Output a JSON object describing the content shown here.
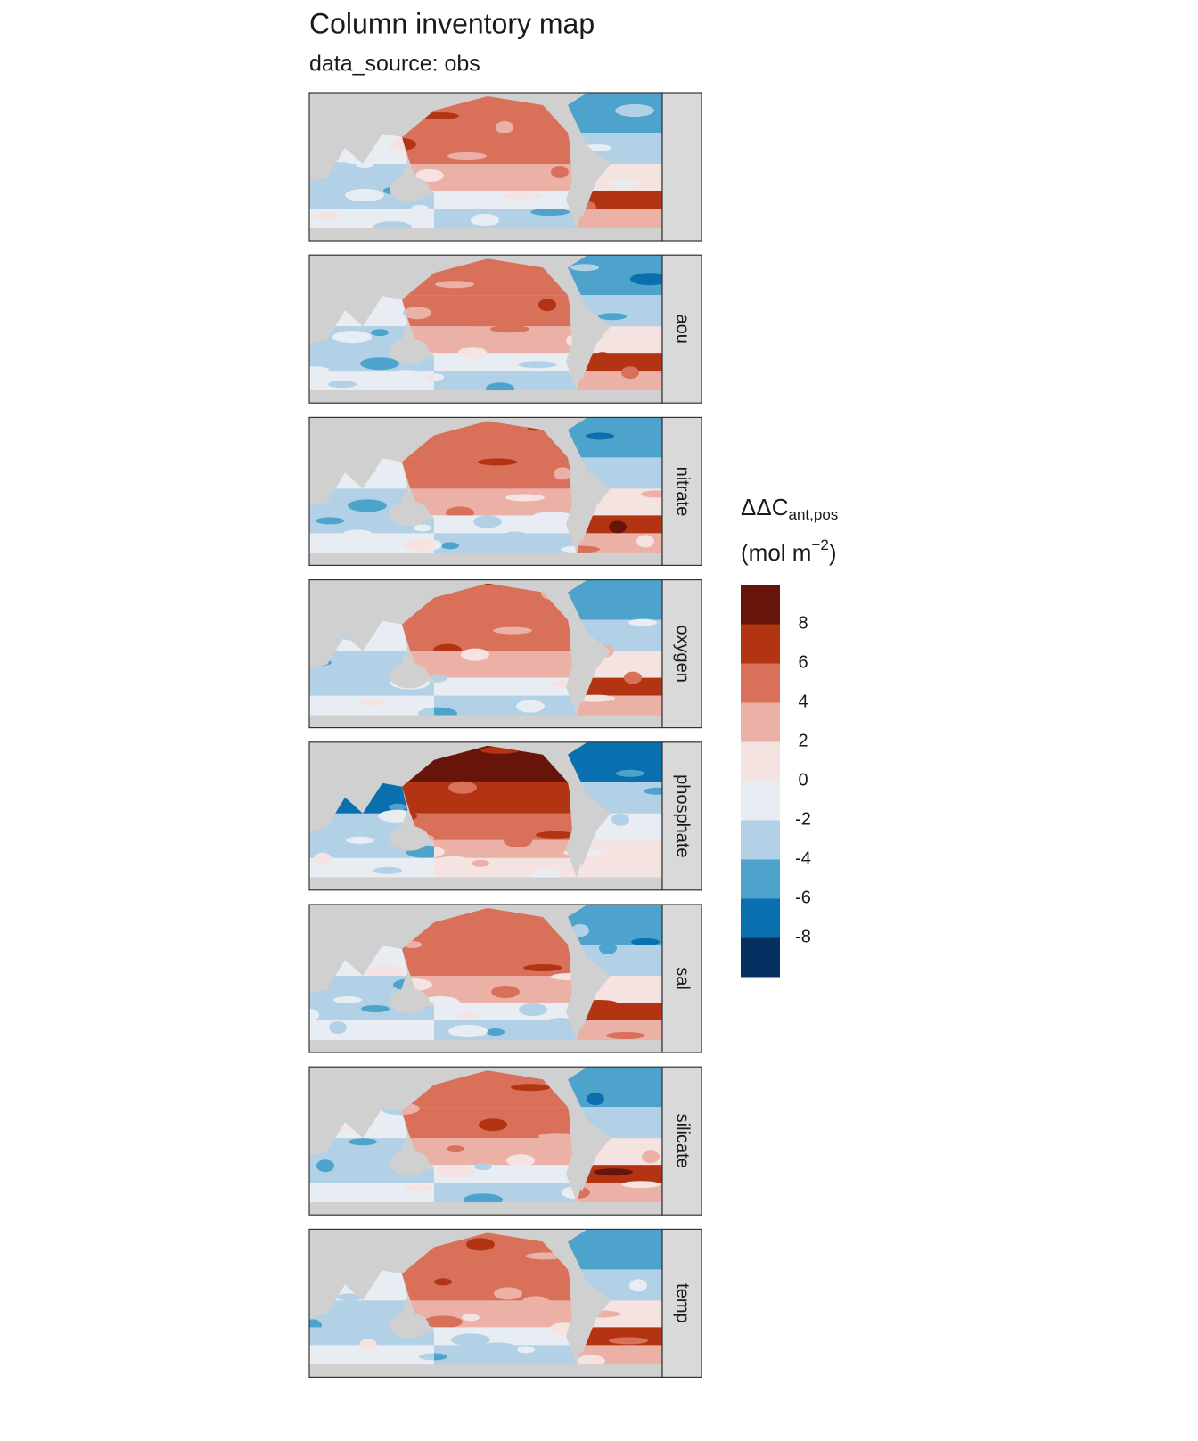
{
  "chart_data": {
    "type": "facet-map",
    "title": "Column inventory map",
    "subtitle": "data_source: obs",
    "facets": [
      null,
      "aou",
      "nitrate",
      "oxygen",
      "phosphate",
      "sal",
      "silicate",
      "temp"
    ],
    "legend": {
      "symbol": "ΔΔC",
      "subscript": "ant,pos",
      "unit_open": "(mol m",
      "unit_power": "−2",
      "unit_close": ")",
      "lim": [
        -10,
        10
      ],
      "ticks": [
        -8,
        -6,
        -4,
        -2,
        0,
        2,
        4,
        6,
        8
      ],
      "colors": [
        "#053061",
        "#0a6fae",
        "#4ea3cc",
        "#b3d1e6",
        "#e8edf3",
        "#f5e3e1",
        "#ebb1a7",
        "#d9705a",
        "#b33412",
        "#67140a"
      ]
    },
    "land_color": "#d0d0d0"
  }
}
